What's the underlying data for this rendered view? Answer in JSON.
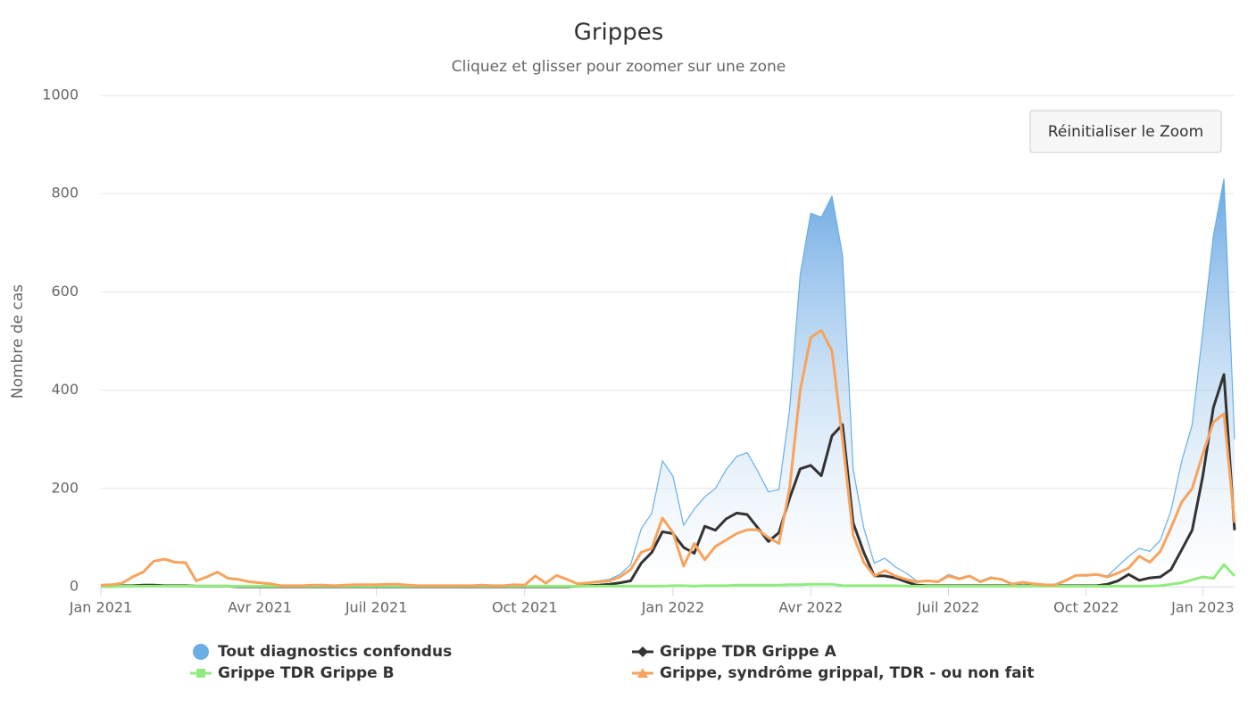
{
  "chart_data": {
    "type": "line",
    "title": "Grippes",
    "subtitle": "Cliquez et glisser pour zoomer sur une zone",
    "y_label": "Nombre de cas",
    "ylim": [
      0,
      1000
    ],
    "yticks": [
      0,
      200,
      400,
      600,
      800,
      1000
    ],
    "grid": true,
    "legend": "bottom",
    "categories": [
      "Jan 2021",
      null,
      null,
      null,
      null,
      null,
      null,
      null,
      null,
      null,
      null,
      null,
      null,
      null,
      null,
      "Avr 2021",
      null,
      null,
      null,
      null,
      null,
      null,
      null,
      null,
      null,
      null,
      "Juil 2021",
      null,
      null,
      null,
      null,
      null,
      null,
      null,
      null,
      null,
      null,
      null,
      null,
      null,
      "Oct 2021",
      null,
      null,
      null,
      null,
      null,
      null,
      null,
      null,
      null,
      null,
      null,
      null,
      null,
      "Jan 2022",
      null,
      null,
      null,
      null,
      null,
      null,
      null,
      null,
      null,
      null,
      null,
      null,
      "Avr 2022",
      null,
      null,
      null,
      null,
      null,
      null,
      null,
      null,
      null,
      null,
      null,
      null,
      "Juil 2022",
      null,
      null,
      null,
      null,
      null,
      null,
      null,
      null,
      null,
      null,
      null,
      null,
      "Oct 2022",
      null,
      null,
      null,
      null,
      null,
      null,
      null,
      null,
      null,
      null,
      "Jan 2023",
      null,
      null,
      null
    ],
    "series": [
      {
        "name": "Tout diagnostics confondus",
        "color": "#6aaee6",
        "area": true,
        "marker": "circle",
        "values": [
          4,
          5,
          8,
          21,
          31,
          53,
          57,
          51,
          50,
          13,
          21,
          31,
          18,
          16,
          11,
          9,
          7,
          3,
          3,
          3,
          4,
          4,
          3,
          4,
          5,
          5,
          5,
          6,
          6,
          4,
          3,
          3,
          3,
          3,
          3,
          3,
          4,
          3,
          3,
          5,
          4,
          23,
          8,
          24,
          16,
          7,
          9,
          12,
          15,
          25,
          45,
          118,
          150,
          256,
          225,
          125,
          158,
          183,
          200,
          238,
          265,
          273,
          235,
          193,
          198,
          360,
          635,
          760,
          752,
          795,
          675,
          240,
          120,
          48,
          58,
          40,
          28,
          12,
          12,
          12,
          25,
          18,
          23,
          12,
          20,
          16,
          7,
          10,
          7,
          5,
          5,
          14,
          24,
          25,
          26,
          22,
          42,
          62,
          78,
          72,
          95,
          155,
          255,
          330,
          520,
          715,
          830,
          300
        ]
      },
      {
        "name": "Grippe TDR Grippe A",
        "color": "#333333",
        "marker": "diamond",
        "values": [
          0,
          1,
          2,
          2,
          3,
          3,
          2,
          2,
          2,
          1,
          1,
          1,
          1,
          0,
          0,
          0,
          0,
          0,
          0,
          0,
          0,
          0,
          0,
          0,
          0,
          0,
          0,
          0,
          0,
          0,
          0,
          0,
          0,
          0,
          0,
          0,
          0,
          0,
          0,
          0,
          0,
          0,
          0,
          0,
          0,
          1,
          2,
          3,
          5,
          8,
          12,
          48,
          70,
          112,
          108,
          80,
          68,
          123,
          115,
          138,
          150,
          147,
          120,
          92,
          110,
          180,
          240,
          247,
          226,
          307,
          330,
          130,
          70,
          22,
          22,
          18,
          10,
          3,
          2,
          2,
          2,
          2,
          2,
          2,
          2,
          2,
          2,
          2,
          2,
          2,
          2,
          2,
          2,
          2,
          2,
          5,
          12,
          25,
          13,
          18,
          20,
          35,
          75,
          115,
          225,
          365,
          432,
          115
        ]
      },
      {
        "name": "Grippe TDR Grippe B",
        "color": "#90ed7d",
        "marker": "square",
        "values": [
          0,
          0,
          1,
          1,
          1,
          1,
          1,
          1,
          1,
          1,
          1,
          1,
          1,
          1,
          1,
          1,
          1,
          1,
          1,
          1,
          1,
          1,
          1,
          1,
          1,
          1,
          1,
          1,
          1,
          1,
          1,
          1,
          1,
          1,
          1,
          1,
          1,
          1,
          1,
          1,
          1,
          1,
          1,
          1,
          1,
          1,
          1,
          1,
          1,
          1,
          1,
          1,
          1,
          1,
          2,
          2,
          1,
          2,
          2,
          2,
          3,
          3,
          3,
          3,
          3,
          4,
          4,
          5,
          5,
          5,
          2,
          2,
          2,
          2,
          2,
          2,
          1,
          1,
          1,
          1,
          1,
          1,
          1,
          1,
          1,
          1,
          1,
          1,
          1,
          1,
          1,
          1,
          1,
          1,
          1,
          1,
          1,
          1,
          1,
          1,
          2,
          5,
          8,
          14,
          20,
          17,
          45,
          22
        ]
      },
      {
        "name": "Grippe, syndrôme grippal, TDR - ou non fait",
        "color": "#f7a35c",
        "marker": "triangle",
        "values": [
          3,
          4,
          7,
          20,
          30,
          52,
          56,
          50,
          49,
          12,
          20,
          30,
          17,
          15,
          10,
          8,
          6,
          2,
          2,
          2,
          3,
          3,
          2,
          3,
          4,
          4,
          4,
          5,
          5,
          3,
          2,
          2,
          2,
          2,
          2,
          2,
          3,
          2,
          2,
          4,
          3,
          22,
          7,
          23,
          15,
          6,
          8,
          10,
          12,
          20,
          35,
          70,
          78,
          140,
          110,
          42,
          88,
          55,
          82,
          95,
          108,
          116,
          116,
          100,
          88,
          200,
          400,
          507,
          522,
          480,
          300,
          105,
          50,
          22,
          33,
          22,
          15,
          10,
          12,
          10,
          22,
          16,
          22,
          10,
          18,
          15,
          5,
          9,
          6,
          4,
          3,
          12,
          23,
          23,
          25,
          20,
          28,
          38,
          62,
          50,
          72,
          120,
          172,
          200,
          270,
          335,
          352,
          130
        ]
      }
    ]
  },
  "reset_button": "Réinitialiser le Zoom"
}
